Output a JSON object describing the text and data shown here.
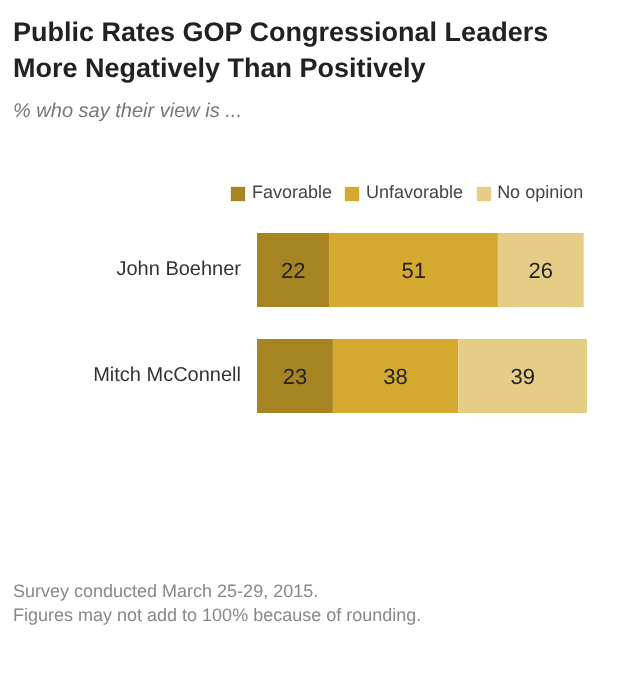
{
  "chart_data": {
    "type": "bar",
    "orientation": "horizontal",
    "stacked": true,
    "title": "Public Rates GOP Congressional Leaders More Negatively Than Positively",
    "subtitle": "% who say their view is ...",
    "categories": [
      "John Boehner",
      "Mitch McConnell"
    ],
    "series": [
      {
        "name": "Favorable",
        "color": "#a58421",
        "values": [
          22,
          23
        ]
      },
      {
        "name": "Unfavorable",
        "color": "#d5a92f",
        "values": [
          51,
          38
        ]
      },
      {
        "name": "No opinion",
        "color": "#e6cd85",
        "values": [
          26,
          39
        ]
      }
    ],
    "data_labels": true,
    "legend": "top",
    "annotations": [
      "Survey conducted March 25-29, 2015.",
      "Figures may not add to 100% because of rounding."
    ]
  }
}
